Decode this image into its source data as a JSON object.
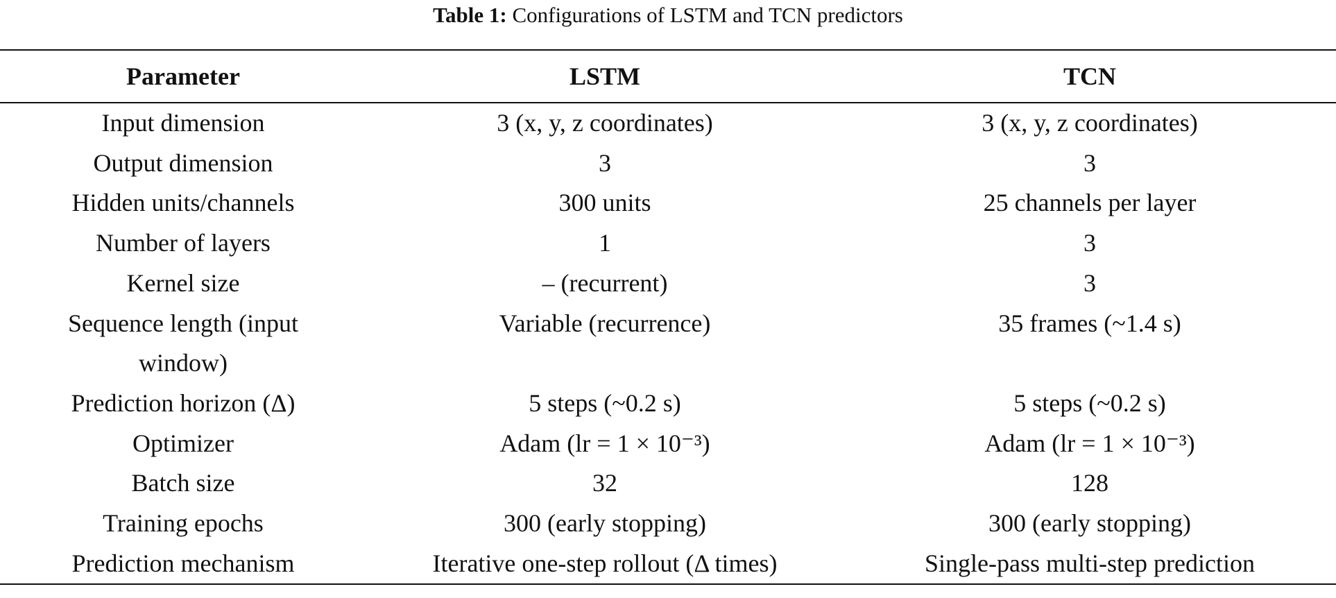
{
  "caption": {
    "label": "Table 1:",
    "text": "Configurations of LSTM and TCN predictors"
  },
  "table": {
    "header": [
      "Parameter",
      "LSTM",
      "TCN"
    ],
    "rows": [
      [
        "Input dimension",
        "3 (x, y, z coordinates)",
        "3 (x, y, z coordinates)"
      ],
      [
        "Output dimension",
        "3",
        "3"
      ],
      [
        "Hidden units/channels",
        "300 units",
        "25 channels per layer"
      ],
      [
        "Number of layers",
        "1",
        "3"
      ],
      [
        "Kernel size",
        "– (recurrent)",
        "3"
      ],
      [
        "Sequence length (input window)",
        "Variable (recurrence)",
        "35 frames (~1.4 s)"
      ],
      [
        "Prediction horizon (Δ)",
        "5 steps (~0.2 s)",
        "5 steps (~0.2 s)"
      ],
      [
        "Optimizer",
        "Adam (lr = 1 × 10⁻³)",
        "Adam (lr = 1 × 10⁻³)"
      ],
      [
        "Batch size",
        "32",
        "128"
      ],
      [
        "Training epochs",
        "300 (early stopping)",
        "300 (early stopping)"
      ],
      [
        "Prediction mechanism",
        "Iterative one-step rollout (Δ times)",
        "Single-pass multi-step prediction"
      ]
    ]
  }
}
